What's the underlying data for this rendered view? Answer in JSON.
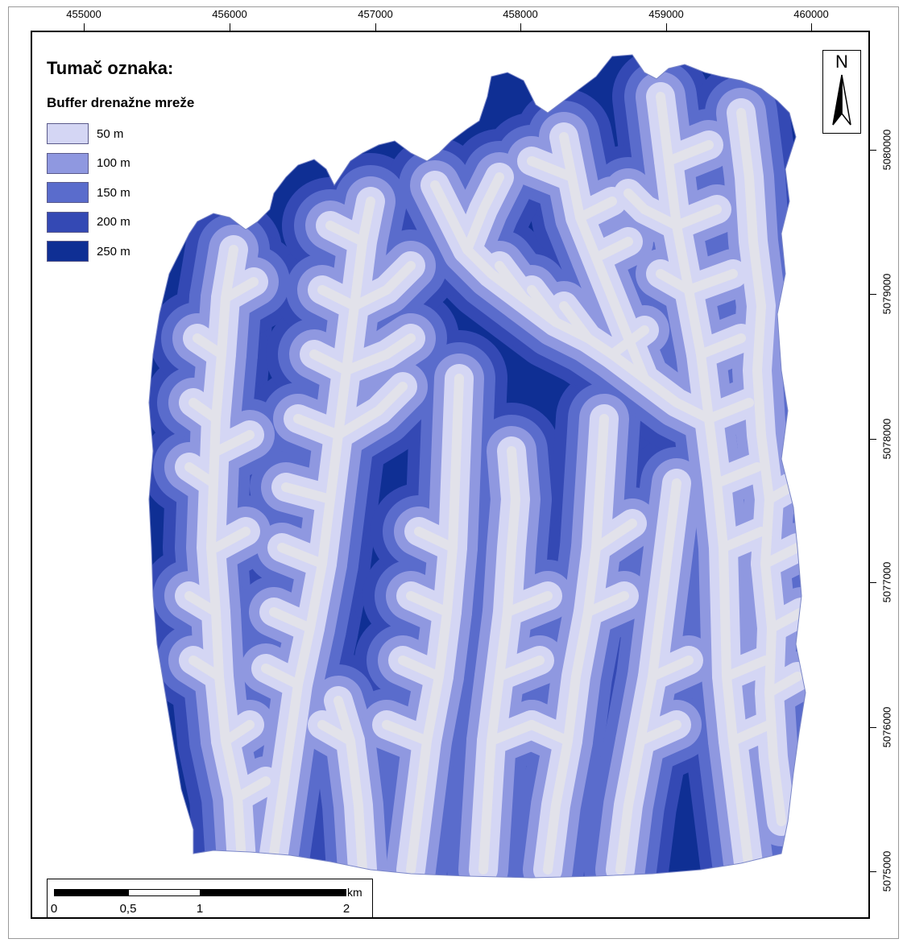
{
  "legend": {
    "title": "Tumač oznaka:",
    "subtitle": "Buffer drenažne mreže",
    "items": [
      {
        "label": "50 m",
        "color": "#d4d6f4"
      },
      {
        "label": "100 m",
        "color": "#8f98e0"
      },
      {
        "label": "150 m",
        "color": "#5a6ccc"
      },
      {
        "label": "200 m",
        "color": "#3449b4"
      },
      {
        "label": "250 m",
        "color": "#0f2f94"
      }
    ]
  },
  "north_arrow": {
    "letter": "N",
    "icon": "north-arrow-icon"
  },
  "axes": {
    "x_ticks": [
      "455000",
      "456000",
      "457000",
      "458000",
      "459000",
      "460000"
    ],
    "y_ticks": [
      "5080000",
      "5079000",
      "5078000",
      "5077000",
      "5076000",
      "5075000"
    ]
  },
  "scalebar": {
    "labels": [
      "0",
      "0,5",
      "1",
      "2"
    ],
    "unit": "km"
  },
  "colors": {
    "buffer_50": "#d4d6f4",
    "buffer_100": "#8f98e0",
    "buffer_150": "#5a6ccc",
    "buffer_200": "#3449b4",
    "buffer_250": "#0f2f94",
    "stream_core": "#e2e2ea"
  }
}
